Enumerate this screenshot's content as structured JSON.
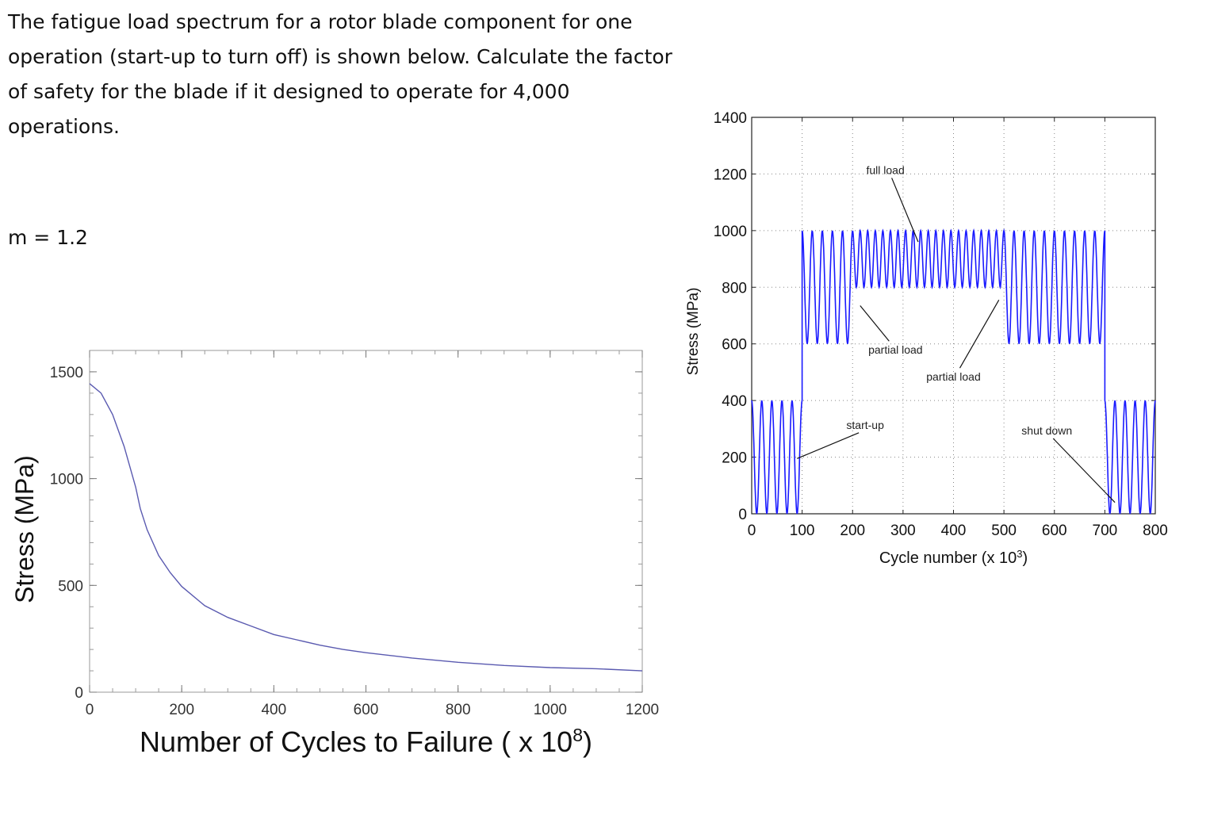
{
  "problem": {
    "lines": [
      "The fatigue load spectrum for a rotor blade component for one",
      "operation (start-up to turn off) is shown below. Calculate the factor",
      "of safety for the blade if it designed to operate for 4,000",
      "operations."
    ],
    "m_label": "m = 1.2"
  },
  "chart_data": [
    {
      "type": "line",
      "title": "",
      "xlabel": "Number of Cycles to Failure ( x 10",
      "xlabel_exponent": "8",
      "xlabel_suffix": ")",
      "ylabel": "Stress (MPa)",
      "xlim": [
        0,
        1200
      ],
      "ylim": [
        0,
        1600
      ],
      "xticks": [
        0,
        200,
        400,
        600,
        800,
        1000,
        1200
      ],
      "yticks": [
        0,
        500,
        1000,
        1500
      ],
      "grid": false,
      "line_color": "#5a5ab0",
      "series": [
        {
          "x": [
            0,
            25,
            50,
            75,
            100,
            110,
            125,
            150,
            175,
            200,
            250,
            300,
            350,
            400,
            450,
            500,
            550,
            600,
            700,
            800,
            900,
            1000,
            1100,
            1200
          ],
          "y": [
            1445,
            1400,
            1300,
            1150,
            960,
            860,
            760,
            640,
            560,
            495,
            405,
            350,
            310,
            270,
            245,
            220,
            200,
            185,
            160,
            140,
            125,
            115,
            110,
            100
          ]
        }
      ]
    },
    {
      "type": "line",
      "title": "",
      "xlabel": "Cycle number (x 10",
      "xlabel_exponent": "3",
      "xlabel_suffix": ")",
      "ylabel": "Stress (MPa)",
      "xlim": [
        0,
        800
      ],
      "ylim": [
        0,
        1400
      ],
      "xticks": [
        0,
        100,
        200,
        300,
        400,
        500,
        600,
        700,
        800
      ],
      "yticks": [
        0,
        200,
        400,
        600,
        800,
        1000,
        1200,
        1400
      ],
      "grid": true,
      "line_color": "#1a1aff",
      "segments": [
        {
          "x_start": 0,
          "x_end": 100,
          "min": 0,
          "max": 400,
          "cycles": 5
        },
        {
          "x_start": 100,
          "x_end": 200,
          "min": 600,
          "max": 1000,
          "cycles": 5
        },
        {
          "x_start": 200,
          "x_end": 500,
          "min": 800,
          "max": 1000,
          "cycles": 20
        },
        {
          "x_start": 500,
          "x_end": 700,
          "min": 600,
          "max": 1000,
          "cycles": 10
        },
        {
          "x_start": 700,
          "x_end": 800,
          "min": 0,
          "max": 400,
          "cycles": 5
        }
      ],
      "annotations": [
        {
          "text": "full load",
          "x": 265,
          "y": 1200,
          "arrow_to": [
            330,
            960
          ]
        },
        {
          "text": "partial load",
          "x": 285,
          "y": 565,
          "arrow_to": [
            215,
            735
          ]
        },
        {
          "text": "partial load",
          "x": 400,
          "y": 470,
          "arrow_to": [
            490,
            755
          ]
        },
        {
          "text": "start-up",
          "x": 225,
          "y": 300,
          "arrow_to": [
            90,
            195
          ]
        },
        {
          "text": "shut down",
          "x": 585,
          "y": 280,
          "arrow_to": [
            720,
            40
          ]
        }
      ]
    }
  ]
}
